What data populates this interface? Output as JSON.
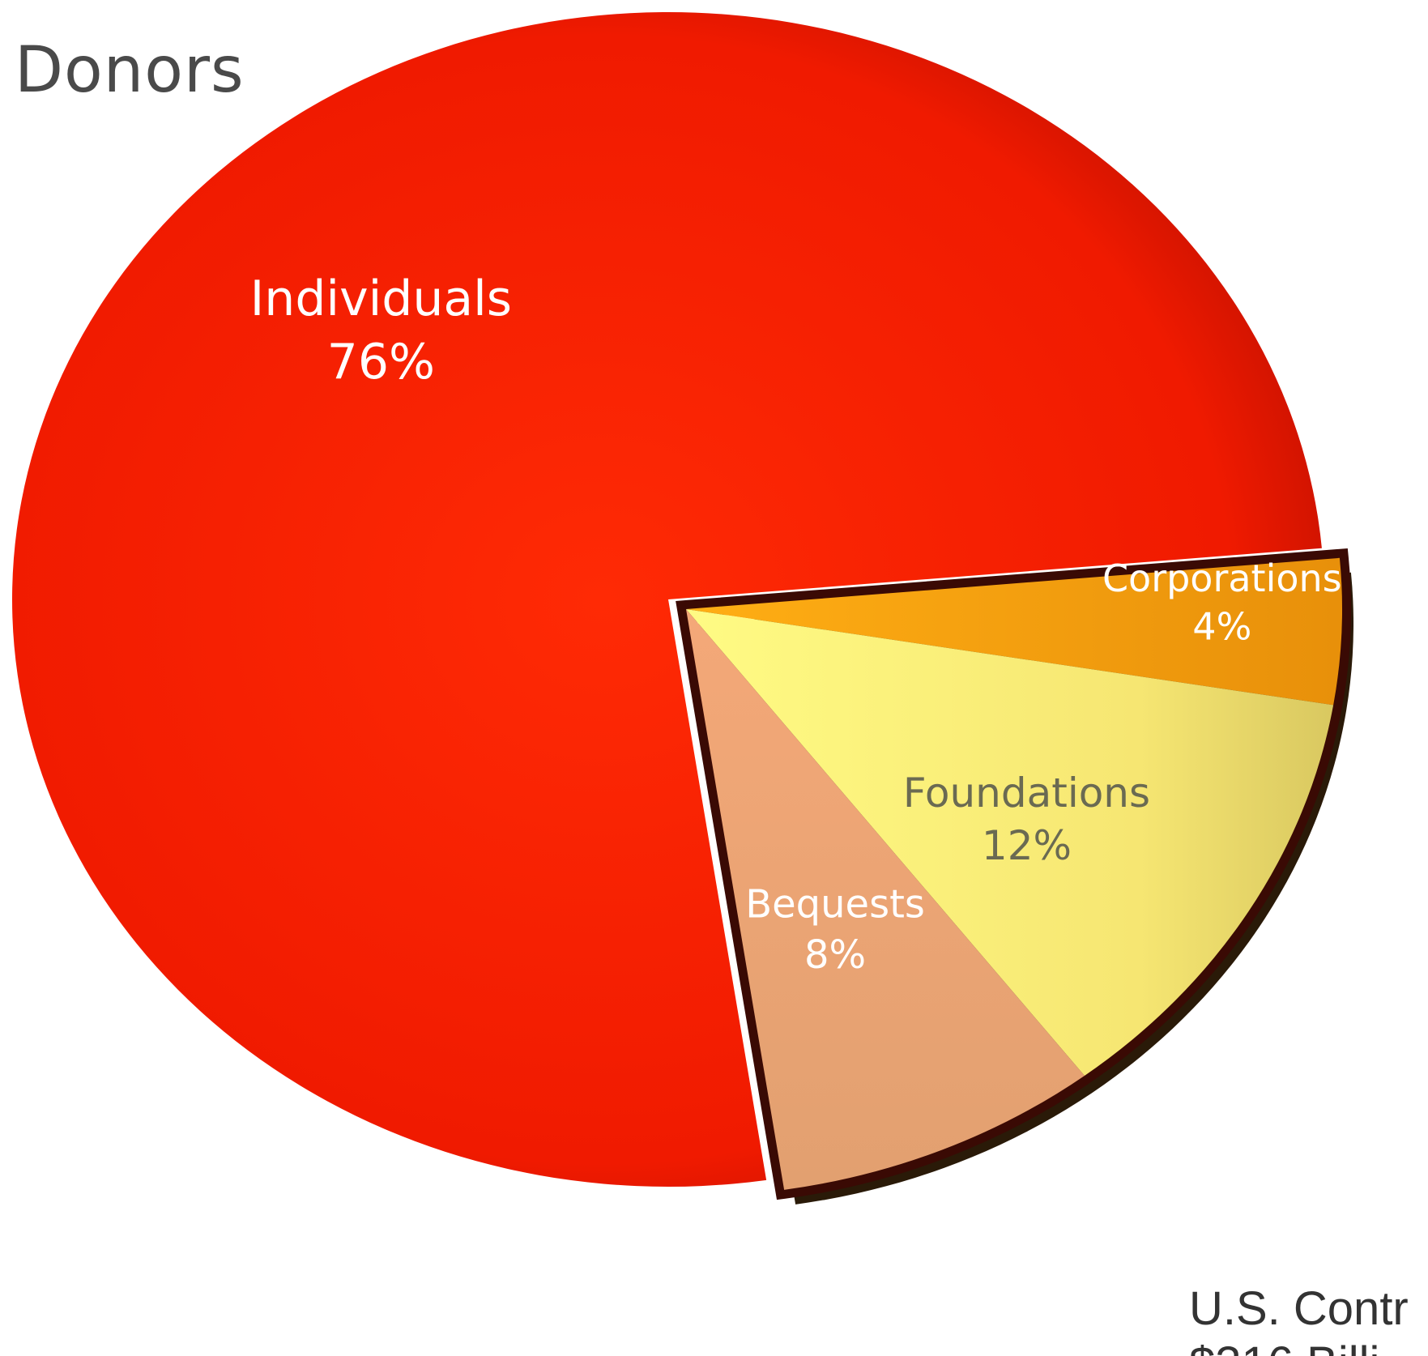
{
  "colors": {
    "individuals": "#ff2200",
    "bequests": "#e8a070",
    "foundations": "#f7ee7a",
    "corporations": "#f5a010",
    "label_light": "#ffffff",
    "label_dark": "#6a6a52"
  },
  "caption": {
    "line1": "U.S. Contr",
    "line2": "$316 Billi"
  },
  "chart_data": {
    "type": "pie",
    "title": "Donors",
    "slices": [
      {
        "label": "Individuals",
        "value": 76,
        "value_label": "76%",
        "color": "#ff2200",
        "exploded": false
      },
      {
        "label": "Corporations",
        "value": 4,
        "value_label": "4%",
        "color": "#f5a010",
        "exploded": true
      },
      {
        "label": "Foundations",
        "value": 12,
        "value_label": "12%",
        "color": "#f7ee7a",
        "exploded": true
      },
      {
        "label": "Bequests",
        "value": 8,
        "value_label": "8%",
        "color": "#e8a070",
        "exploded": true
      }
    ]
  }
}
